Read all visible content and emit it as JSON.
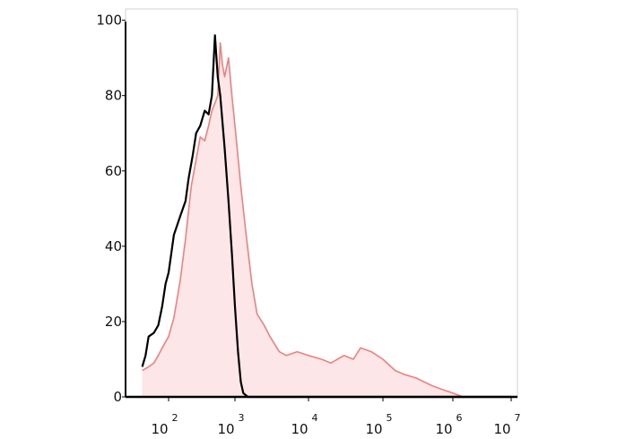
{
  "chart_data": {
    "type": "area",
    "title": "",
    "xlabel": "",
    "ylabel": "",
    "x_scale": "log",
    "xlim": [
      40,
      10000000
    ],
    "ylim": [
      0,
      103
    ],
    "grid": false,
    "legend": "none",
    "x_ticks": [
      {
        "value": 100,
        "base": "10",
        "exp": "2"
      },
      {
        "value": 1000,
        "base": "10",
        "exp": "3"
      },
      {
        "value": 10000,
        "base": "10",
        "exp": "4"
      },
      {
        "value": 100000,
        "base": "10",
        "exp": "5"
      },
      {
        "value": 1000000,
        "base": "10",
        "exp": "6"
      },
      {
        "value": 10000000,
        "base": "10",
        "exp": "7"
      }
    ],
    "y_ticks": [
      {
        "value": 0,
        "label": "0"
      },
      {
        "value": 20,
        "label": "20"
      },
      {
        "value": 40,
        "label": "40"
      },
      {
        "value": 60,
        "label": "60"
      },
      {
        "value": 80,
        "label": "80"
      },
      {
        "value": 100,
        "label": "100"
      }
    ],
    "series": [
      {
        "color": "#f08080",
        "fill": "#fde6e8",
        "x": [
          40,
          50,
          60,
          70,
          80,
          100,
          120,
          150,
          180,
          220,
          260,
          300,
          350,
          400,
          450,
          500,
          550,
          600,
          650,
          700,
          800,
          900,
          1000,
          1200,
          1400,
          1700,
          2000,
          2500,
          3000,
          4000,
          5000,
          7000,
          10000,
          15000,
          20000,
          30000,
          40000,
          50000,
          70000,
          100000,
          150000,
          200000,
          300000,
          500000,
          700000,
          1000000,
          1500000,
          2000000,
          5000000,
          10000000
        ],
        "values": [
          7,
          8,
          9,
          11,
          13,
          16,
          21,
          31,
          42,
          56,
          63,
          69,
          68,
          72,
          76,
          78,
          80,
          94,
          88,
          85,
          90,
          80,
          72,
          56,
          44,
          30,
          22,
          19,
          16,
          12,
          11,
          12,
          11,
          10,
          9,
          11,
          10,
          13,
          12,
          10,
          7,
          6,
          5,
          3,
          2,
          1,
          0,
          0,
          0,
          0
        ]
      },
      {
        "color": "#000000",
        "x": [
          40,
          45,
          50,
          60,
          70,
          80,
          90,
          100,
          120,
          150,
          180,
          200,
          230,
          260,
          300,
          350,
          400,
          450,
          500,
          550,
          600,
          700,
          800,
          900,
          1000,
          1100,
          1200,
          1300,
          1500,
          1700,
          2000,
          3000,
          5000,
          10000000
        ],
        "values": [
          8,
          11,
          16,
          17,
          19,
          24,
          30,
          33,
          43,
          48,
          52,
          58,
          64,
          70,
          72,
          76,
          75,
          80,
          96,
          85,
          80,
          66,
          52,
          38,
          24,
          12,
          4,
          1,
          0,
          0,
          0,
          0,
          0,
          0
        ]
      }
    ]
  }
}
